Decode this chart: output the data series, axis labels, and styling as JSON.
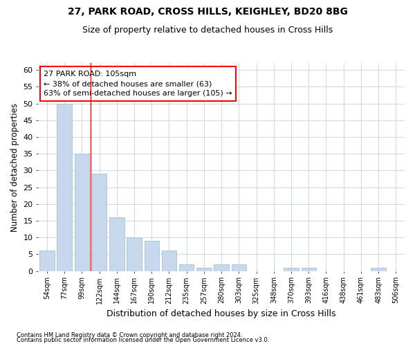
{
  "title1": "27, PARK ROAD, CROSS HILLS, KEIGHLEY, BD20 8BG",
  "title2": "Size of property relative to detached houses in Cross Hills",
  "xlabel": "Distribution of detached houses by size in Cross Hills",
  "ylabel": "Number of detached properties",
  "categories": [
    "54sqm",
    "77sqm",
    "99sqm",
    "122sqm",
    "144sqm",
    "167sqm",
    "190sqm",
    "212sqm",
    "235sqm",
    "257sqm",
    "280sqm",
    "303sqm",
    "325sqm",
    "348sqm",
    "370sqm",
    "393sqm",
    "416sqm",
    "438sqm",
    "461sqm",
    "483sqm",
    "506sqm"
  ],
  "values": [
    6,
    50,
    35,
    29,
    16,
    10,
    9,
    6,
    2,
    1,
    2,
    2,
    0,
    0,
    1,
    1,
    0,
    0,
    0,
    1,
    0
  ],
  "bar_color": "#c8d8ec",
  "bar_edge_color": "#a8c0d8",
  "grid_color": "#cdd8e3",
  "bg_color": "#ffffff",
  "annotation_line1": "27 PARK ROAD: 105sqm",
  "annotation_line2": "← 38% of detached houses are smaller (63)",
  "annotation_line3": "63% of semi-detached houses are larger (105) →",
  "red_line_x": 2.5,
  "ylim": [
    0,
    62
  ],
  "yticks": [
    0,
    5,
    10,
    15,
    20,
    25,
    30,
    35,
    40,
    45,
    50,
    55,
    60
  ],
  "footnote1": "Contains HM Land Registry data © Crown copyright and database right 2024.",
  "footnote2": "Contains public sector information licensed under the Open Government Licence v3.0."
}
